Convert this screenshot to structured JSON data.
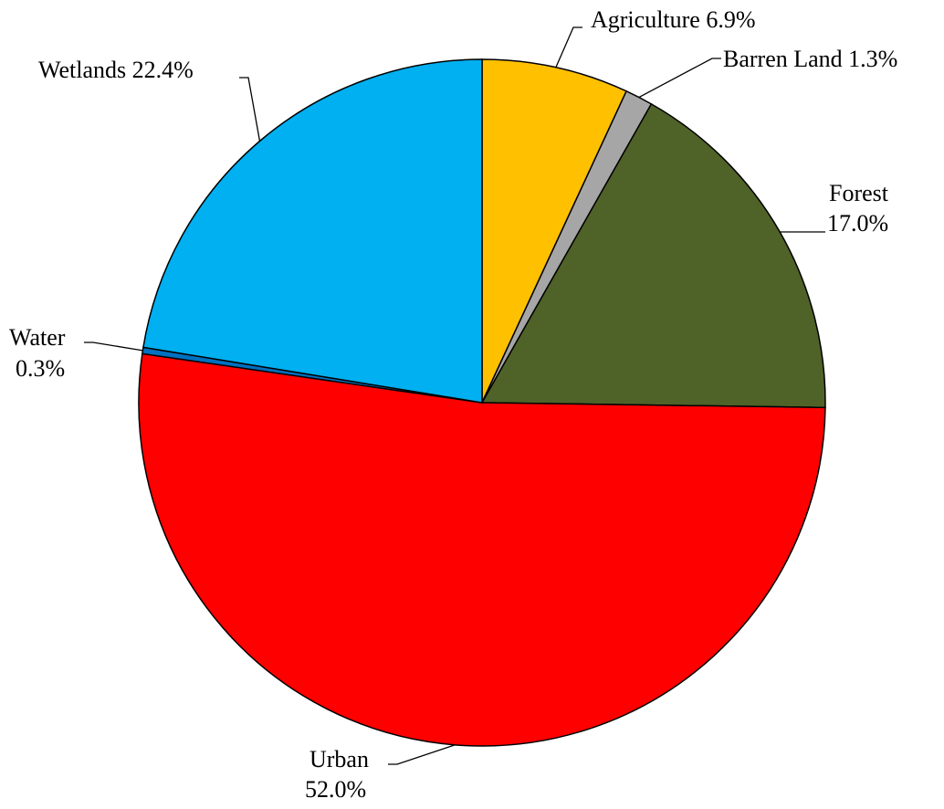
{
  "chart_data": {
    "type": "pie",
    "title": "",
    "slices": [
      {
        "name": "Agriculture",
        "value": 6.9,
        "pct_label": "6.9%",
        "color": "#FFC000"
      },
      {
        "name": "Barren Land",
        "value": 1.3,
        "pct_label": "1.3%",
        "color": "#A6A6A6"
      },
      {
        "name": "Forest",
        "value": 17.0,
        "pct_label": "17.0%",
        "color": "#4F6228"
      },
      {
        "name": "Urban",
        "value": 52.0,
        "pct_label": "52.0%",
        "color": "#FF0000"
      },
      {
        "name": "Water",
        "value": 0.3,
        "pct_label": "0.3%",
        "color": "#0070C0"
      },
      {
        "name": "Wetlands",
        "value": 22.4,
        "pct_label": "22.4%",
        "color": "#00B0F0"
      }
    ],
    "start_angle": "12 o'clock",
    "direction": "clockwise",
    "legend": "none (labels on leader lines)"
  }
}
